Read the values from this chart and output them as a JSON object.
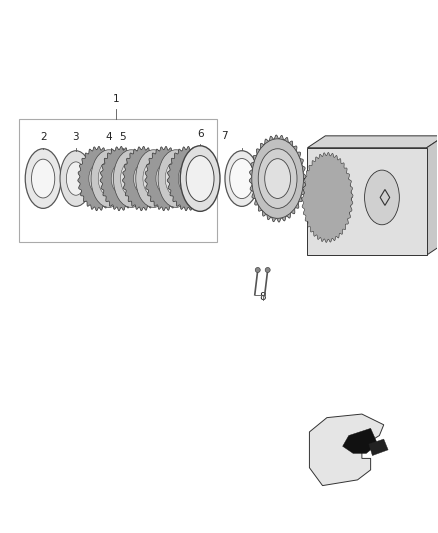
{
  "bg_color": "#ffffff",
  "fig_width": 4.38,
  "fig_height": 5.33,
  "dpi": 100,
  "label_fontsize": 7.5,
  "label_color": "#222222",
  "lc": "#444444"
}
